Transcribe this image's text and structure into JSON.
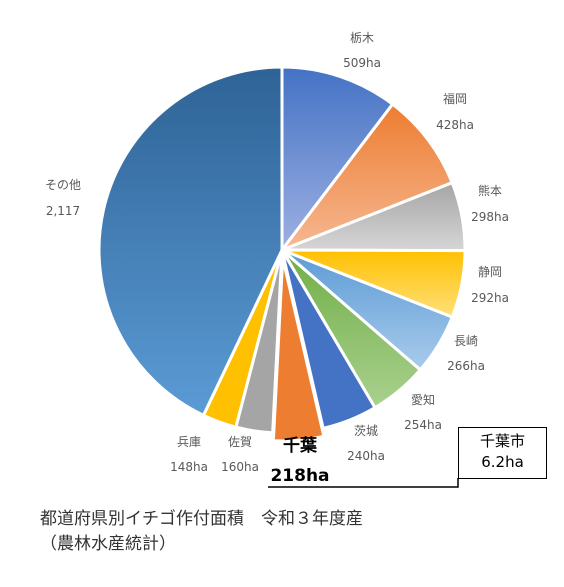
{
  "chart_data": {
    "type": "pie",
    "slices": [
      {
        "name": "栃木",
        "value": 509,
        "value_label": "509ha",
        "color_top": "#4472c4",
        "color_bottom": "#9db0e2"
      },
      {
        "name": "福岡",
        "value": 428,
        "value_label": "428ha",
        "color_top": "#ed7d31",
        "color_bottom": "#f6b893"
      },
      {
        "name": "熊本",
        "value": 298,
        "value_label": "298ha",
        "color_top": "#a5a5a5",
        "color_bottom": "#d6d6d6"
      },
      {
        "name": "静岡",
        "value": 292,
        "value_label": "292ha",
        "color_top": "#ffc000",
        "color_bottom": "#ffe07a"
      },
      {
        "name": "長崎",
        "value": 266,
        "value_label": "266ha",
        "color_top": "#5b9bd5",
        "color_bottom": "#a9cbec"
      },
      {
        "name": "愛知",
        "value": 254,
        "value_label": "254ha",
        "color_top": "#70ad47",
        "color_bottom": "#a9d18e"
      },
      {
        "name": "茨城",
        "value": 240,
        "value_label": "240ha",
        "color_top": "#4472c4",
        "color_bottom": "#4472c4"
      },
      {
        "name": "千葉",
        "value": 218,
        "value_label": "218ha",
        "color_top": "#ed7d31",
        "color_bottom": "#ed7d31",
        "highlight": true
      },
      {
        "name": "佐賀",
        "value": 160,
        "value_label": "160ha",
        "color_top": "#a5a5a5",
        "color_bottom": "#a5a5a5"
      },
      {
        "name": "兵庫",
        "value": 148,
        "value_label": "148ha",
        "color_top": "#ffc000",
        "color_bottom": "#ffc000"
      },
      {
        "name": "その他",
        "value": 2117,
        "value_label": "2,117",
        "color_top": "#2e6396",
        "color_bottom": "#5b9bd5"
      }
    ]
  },
  "callout": {
    "line1": "千葉市",
    "line2": "6.2ha"
  },
  "caption": {
    "line1": "都道府県別イチゴ作付面積　令和３年度産",
    "line2": "（農林水産統計）"
  }
}
